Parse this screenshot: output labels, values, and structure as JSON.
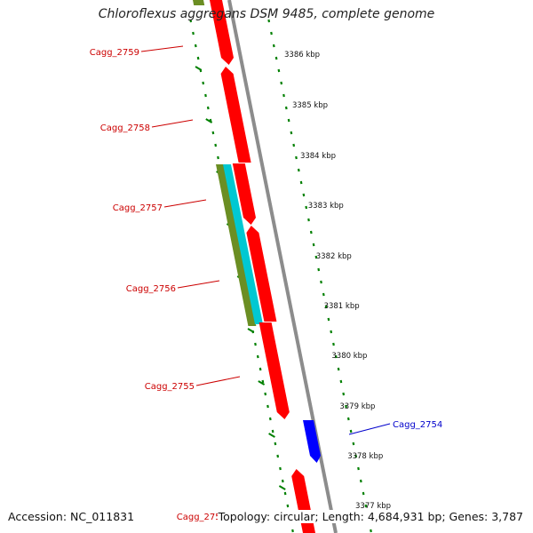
{
  "title": "Chloroflexus aggregans DSM 9485, complete genome",
  "accession_text": "Accession: NC_011831",
  "summary_text": "Topology: circular; Length: 4,684,931 bp; Genes: 3,787",
  "colors": {
    "gene_forward": "#ff0000",
    "gene_reverse": "#0000ff",
    "backbone": "#8c8c8c",
    "feature_olive": "#6b8e23",
    "feature_cyan": "#00c8d2",
    "ticks": "#008000",
    "label_red": "#cc0000",
    "label_blue": "#0000cc"
  },
  "ticks": [
    {
      "label": "3386 kbp"
    },
    {
      "label": "3385 kbp"
    },
    {
      "label": "3384 kbp"
    },
    {
      "label": "3383 kbp"
    },
    {
      "label": "3382 kbp"
    },
    {
      "label": "3381 kbp"
    },
    {
      "label": "3380 kbp"
    },
    {
      "label": "3379 kbp"
    },
    {
      "label": "3378 kbp"
    },
    {
      "label": "3377 kbp"
    }
  ],
  "genes": [
    {
      "label": "Cagg_2759",
      "strand": "forward"
    },
    {
      "label": "Cagg_2758",
      "strand": "forward"
    },
    {
      "label": "Cagg_2757",
      "strand": "forward"
    },
    {
      "label": "Cagg_2756",
      "strand": "forward"
    },
    {
      "label": "Cagg_2755",
      "strand": "forward"
    },
    {
      "label": "Cagg_2754",
      "strand": "reverse"
    },
    {
      "label": "Cagg_2753",
      "strand": "forward"
    }
  ]
}
